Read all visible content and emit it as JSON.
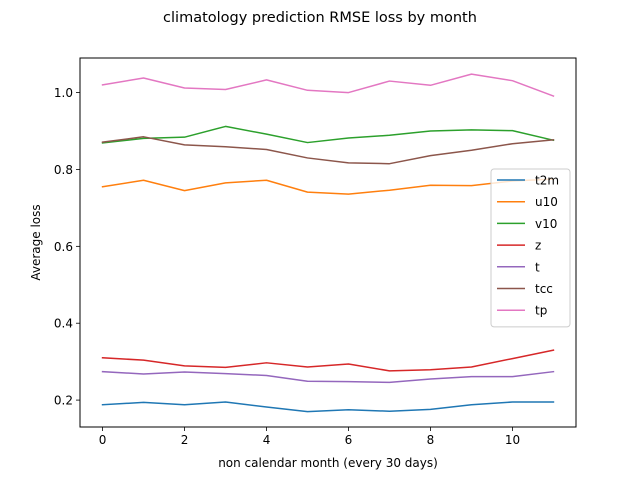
{
  "chart_data": {
    "type": "line",
    "title": "climatology prediction RMSE loss by month",
    "xlabel": "non calendar month (every 30 days)",
    "ylabel": "Average loss",
    "xlim": [
      -0.55,
      11.55
    ],
    "ylim": [
      0.13,
      1.09
    ],
    "xticks": [
      0,
      2,
      4,
      6,
      8,
      10
    ],
    "xtick_labels": [
      "0",
      "2",
      "4",
      "6",
      "8",
      "10"
    ],
    "yticks": [
      0.2,
      0.4,
      0.6,
      0.8,
      1.0
    ],
    "ytick_labels": [
      "0.2",
      "0.4",
      "0.6",
      "0.8",
      "1.0"
    ],
    "grid": false,
    "legend_position": "center-right",
    "x": [
      0,
      1,
      2,
      3,
      4,
      5,
      6,
      7,
      8,
      9,
      10,
      11
    ],
    "series": [
      {
        "name": "t2m",
        "color": "#1f77b4",
        "values": [
          0.188,
          0.194,
          0.188,
          0.195,
          0.182,
          0.17,
          0.175,
          0.171,
          0.176,
          0.188,
          0.195,
          0.195
        ]
      },
      {
        "name": "u10",
        "color": "#ff7f0e",
        "values": [
          0.755,
          0.772,
          0.745,
          0.765,
          0.772,
          0.741,
          0.736,
          0.746,
          0.759,
          0.758,
          0.77,
          0.775
        ]
      },
      {
        "name": "v10",
        "color": "#2ca02c",
        "values": [
          0.869,
          0.881,
          0.884,
          0.912,
          0.892,
          0.87,
          0.882,
          0.889,
          0.9,
          0.903,
          0.901,
          0.876
        ]
      },
      {
        "name": "z",
        "color": "#d62728",
        "values": [
          0.31,
          0.304,
          0.289,
          0.285,
          0.297,
          0.286,
          0.294,
          0.276,
          0.279,
          0.286,
          0.308,
          0.33
        ]
      },
      {
        "name": "t",
        "color": "#9467bd",
        "values": [
          0.274,
          0.268,
          0.273,
          0.269,
          0.264,
          0.249,
          0.248,
          0.246,
          0.255,
          0.261,
          0.261,
          0.274
        ]
      },
      {
        "name": "tcc",
        "color": "#8c564b",
        "values": [
          0.871,
          0.885,
          0.864,
          0.859,
          0.852,
          0.83,
          0.817,
          0.815,
          0.836,
          0.85,
          0.867,
          0.877
        ]
      },
      {
        "name": "tp",
        "color": "#e377c2",
        "values": [
          1.02,
          1.038,
          1.012,
          1.008,
          1.033,
          1.006,
          1.0,
          1.03,
          1.019,
          1.048,
          1.031,
          0.991
        ]
      }
    ]
  }
}
